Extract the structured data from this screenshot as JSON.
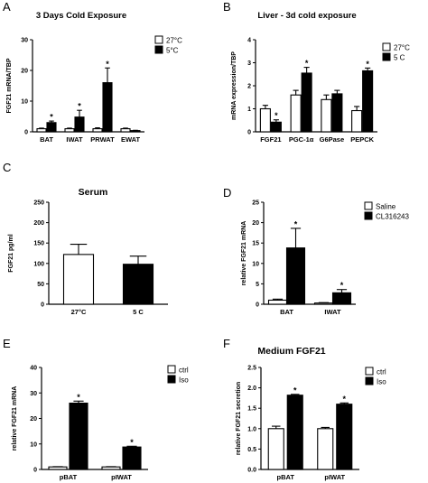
{
  "chart_data": [
    {
      "panel": "A",
      "type": "bar",
      "title": "3 Days Cold Exposure",
      "ylabel": "FGF21 mRNA/TBP",
      "xlabel": "",
      "categories": [
        "BAT",
        "IWAT",
        "PRWAT",
        "EWAT"
      ],
      "series": [
        {
          "name": "27°C",
          "values": [
            1.0,
            1.0,
            1.0,
            1.0
          ],
          "errors": [
            0.2,
            0.2,
            0.3,
            0.2
          ],
          "fill": "#ffffff"
        },
        {
          "name": "5°C",
          "values": [
            3.0,
            4.8,
            16.0,
            0.4
          ],
          "errors": [
            0.5,
            2.2,
            4.8,
            0.1
          ],
          "fill": "#000000"
        }
      ],
      "significance": [
        [
          0,
          1
        ],
        [
          1,
          1
        ],
        [
          2,
          1
        ]
      ],
      "ylim": [
        0,
        30
      ],
      "yticks": [
        0,
        10,
        20,
        30
      ],
      "legend": "top-right",
      "grid": false
    },
    {
      "panel": "B",
      "type": "bar",
      "title": "Liver - 3d cold exposure",
      "ylabel": "mRNA expression/TBP",
      "xlabel": "",
      "categories": [
        "FGF21",
        "PGC-1α",
        "G6Pase",
        "PEPCK"
      ],
      "series": [
        {
          "name": "27°C",
          "values": [
            1.0,
            1.6,
            1.4,
            0.92
          ],
          "errors": [
            0.15,
            0.2,
            0.2,
            0.18
          ],
          "fill": "#ffffff"
        },
        {
          "name": "5 C",
          "values": [
            0.42,
            2.55,
            1.65,
            2.65
          ],
          "errors": [
            0.1,
            0.25,
            0.15,
            0.12
          ],
          "fill": "#000000"
        }
      ],
      "significance": [
        [
          0,
          1
        ],
        [
          1,
          1
        ],
        [
          3,
          1
        ]
      ],
      "ylim": [
        0,
        4
      ],
      "yticks": [
        0,
        1,
        2,
        3,
        4
      ],
      "legend": "top-right",
      "grid": false
    },
    {
      "panel": "C",
      "type": "bar",
      "title": "Serum",
      "ylabel": "FGF21 pg/ml",
      "xlabel": "",
      "categories": [
        "27°C",
        "5 C"
      ],
      "series": [
        {
          "name": "",
          "values": [
            122,
            98
          ],
          "errors": [
            25,
            20
          ],
          "fills": [
            "#ffffff",
            "#000000"
          ]
        }
      ],
      "significance": [],
      "ylim": [
        0,
        250
      ],
      "yticks": [
        0,
        50,
        100,
        150,
        200,
        250
      ],
      "legend": "none",
      "grid": false
    },
    {
      "panel": "D",
      "type": "bar",
      "title": "",
      "ylabel": "relative FGF21 mRNA",
      "xlabel": "",
      "categories": [
        "BAT",
        "IWAT"
      ],
      "series": [
        {
          "name": "Saline",
          "values": [
            1.0,
            0.3
          ],
          "errors": [
            0.25,
            0.1
          ],
          "fill": "#ffffff"
        },
        {
          "name": "CL316243",
          "values": [
            13.8,
            2.8
          ],
          "errors": [
            4.8,
            0.8
          ],
          "fill": "#000000"
        }
      ],
      "significance": [
        [
          0,
          1
        ],
        [
          1,
          1
        ]
      ],
      "ylim": [
        0,
        25
      ],
      "yticks": [
        0,
        5,
        10,
        15,
        20,
        25
      ],
      "legend": "top-right",
      "grid": false
    },
    {
      "panel": "E",
      "type": "bar",
      "title": "",
      "ylabel": "relative FGF21 mRNA",
      "xlabel": "",
      "categories": [
        "pBAT",
        "pIWAT"
      ],
      "series": [
        {
          "name": "ctrl",
          "values": [
            1.0,
            1.0
          ],
          "errors": [
            0.1,
            0.1
          ],
          "fill": "#ffffff"
        },
        {
          "name": "Iso",
          "values": [
            26.0,
            8.8
          ],
          "errors": [
            0.8,
            0.3
          ],
          "fill": "#000000"
        }
      ],
      "significance": [
        [
          0,
          1
        ],
        [
          1,
          1
        ]
      ],
      "ylim": [
        0,
        40
      ],
      "yticks": [
        0,
        10,
        20,
        30,
        40
      ],
      "legend": "top-right",
      "grid": false
    },
    {
      "panel": "F",
      "type": "bar",
      "title": "Medium FGF21",
      "ylabel": "relative FGF21 secretion",
      "xlabel": "",
      "categories": [
        "pBAT",
        "pIWAT"
      ],
      "series": [
        {
          "name": "ctrl",
          "values": [
            1.0,
            1.0
          ],
          "errors": [
            0.06,
            0.03
          ],
          "fill": "#ffffff"
        },
        {
          "name": "Iso",
          "values": [
            1.82,
            1.6
          ],
          "errors": [
            0.02,
            0.03
          ],
          "fill": "#000000"
        }
      ],
      "significance": [
        [
          0,
          1
        ],
        [
          1,
          1
        ]
      ],
      "ylim": [
        0,
        2.5
      ],
      "yticks": [
        0.0,
        0.5,
        1.0,
        1.5,
        2.0,
        2.5
      ],
      "legend": "top-right",
      "grid": false
    }
  ]
}
